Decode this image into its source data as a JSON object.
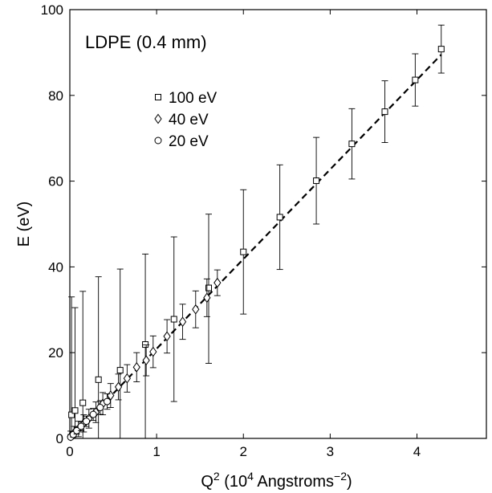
{
  "chart_data": {
    "type": "scatter",
    "title": "",
    "annotation": "LDPE (0.4 mm)",
    "xlabel": "Q^2 (10^4 Angstroms^-2)",
    "xlabel_parts": {
      "base": "Q",
      "sup1": "2",
      "mid": " (10",
      "sup2": "4",
      "unit": " Angstroms",
      "sup3": "−2",
      "end": ")"
    },
    "ylabel": "E (eV)",
    "xlim": [
      0,
      4.8
    ],
    "ylim": [
      0,
      100
    ],
    "xticks": [
      0,
      1,
      2,
      3,
      4
    ],
    "yticks": [
      0,
      20,
      40,
      60,
      80,
      100
    ],
    "grid": false,
    "legend_position": "upper-left",
    "fit_line": {
      "x": [
        0,
        4.28
      ],
      "y": [
        0,
        89.5
      ],
      "style": "dashed"
    },
    "series": [
      {
        "name": "100 eV",
        "marker": "square",
        "points": [
          {
            "x": 0.02,
            "y": 5.5,
            "err_low": 5.5,
            "err_high": 27.5
          },
          {
            "x": 0.06,
            "y": 6.5,
            "err_low": 6.5,
            "err_high": 24
          },
          {
            "x": 0.15,
            "y": 8.3,
            "err_low": 8.3,
            "err_high": 26
          },
          {
            "x": 0.33,
            "y": 13.7,
            "err_low": 13.7,
            "err_high": 24
          },
          {
            "x": 0.58,
            "y": 15.9,
            "err_low": 15.9,
            "err_high": 23.6
          },
          {
            "x": 0.87,
            "y": 21.9,
            "err_low": 21.9,
            "err_high": 21.1
          },
          {
            "x": 1.2,
            "y": 27.8,
            "err_low": 19.2,
            "err_high": 19.2
          },
          {
            "x": 1.6,
            "y": 35.1,
            "err_low": 17.6,
            "err_high": 17.2
          },
          {
            "x": 2.0,
            "y": 43.5,
            "err_low": 14.5,
            "err_high": 14.5
          },
          {
            "x": 2.42,
            "y": 51.6,
            "err_low": 12.2,
            "err_high": 12.2
          },
          {
            "x": 2.84,
            "y": 60.1,
            "err_low": 10.1,
            "err_high": 10.1
          },
          {
            "x": 3.25,
            "y": 68.7,
            "err_low": 8.2,
            "err_high": 8.2
          },
          {
            "x": 3.63,
            "y": 76.2,
            "err_low": 7.2,
            "err_high": 7.2
          },
          {
            "x": 3.98,
            "y": 83.6,
            "err_low": 6.1,
            "err_high": 6.1
          },
          {
            "x": 4.28,
            "y": 90.8,
            "err_low": 5.6,
            "err_high": 5.6
          }
        ]
      },
      {
        "name": "40 eV",
        "marker": "diamond",
        "points": [
          {
            "x": 0.01,
            "y": 0.5,
            "err_low": 0.5,
            "err_high": 1.2
          },
          {
            "x": 0.05,
            "y": 1.3,
            "err_low": 1.3,
            "err_high": 1.5
          },
          {
            "x": 0.1,
            "y": 2.2,
            "err_low": 1.8,
            "err_high": 1.8
          },
          {
            "x": 0.16,
            "y": 3.5,
            "err_low": 2.0,
            "err_high": 2.0
          },
          {
            "x": 0.22,
            "y": 4.6,
            "err_low": 2.2,
            "err_high": 2.2
          },
          {
            "x": 0.3,
            "y": 6.1,
            "err_low": 2.4,
            "err_high": 2.4
          },
          {
            "x": 0.38,
            "y": 8.1,
            "err_low": 2.6,
            "err_high": 2.6
          },
          {
            "x": 0.47,
            "y": 10.0,
            "err_low": 2.8,
            "err_high": 2.8
          },
          {
            "x": 0.56,
            "y": 12.0,
            "err_low": 3.0,
            "err_high": 3.0
          },
          {
            "x": 0.66,
            "y": 14.0,
            "err_low": 3.2,
            "err_high": 3.2
          },
          {
            "x": 0.77,
            "y": 16.6,
            "err_low": 3.4,
            "err_high": 3.4
          },
          {
            "x": 0.88,
            "y": 18.2,
            "err_low": 3.6,
            "err_high": 3.6
          },
          {
            "x": 0.96,
            "y": 20.2,
            "err_low": 3.7,
            "err_high": 3.7
          },
          {
            "x": 1.12,
            "y": 23.8,
            "err_low": 3.9,
            "err_high": 3.9
          },
          {
            "x": 1.3,
            "y": 27.2,
            "err_low": 4.1,
            "err_high": 4.1
          },
          {
            "x": 1.45,
            "y": 30.1,
            "err_low": 4.3,
            "err_high": 4.3
          },
          {
            "x": 1.58,
            "y": 32.8,
            "err_low": 4.4,
            "err_high": 4.4
          },
          {
            "x": 1.7,
            "y": 36.3,
            "err_low": 3.0,
            "err_high": 3.0
          }
        ]
      },
      {
        "name": "20 eV",
        "marker": "circle",
        "points": [
          {
            "x": 0.01,
            "y": 0.3,
            "err_low": 0.3,
            "err_high": 0.6
          },
          {
            "x": 0.04,
            "y": 0.9,
            "err_low": 0.6,
            "err_high": 0.6
          },
          {
            "x": 0.08,
            "y": 1.8,
            "err_low": 0.8,
            "err_high": 0.8
          },
          {
            "x": 0.13,
            "y": 2.8,
            "err_low": 1.0,
            "err_high": 1.0
          },
          {
            "x": 0.19,
            "y": 4.0,
            "err_low": 1.2,
            "err_high": 1.2
          },
          {
            "x": 0.27,
            "y": 5.6,
            "err_low": 1.4,
            "err_high": 1.4
          },
          {
            "x": 0.35,
            "y": 7.2,
            "err_low": 1.6,
            "err_high": 1.6
          },
          {
            "x": 0.43,
            "y": 8.6,
            "err_low": 1.8,
            "err_high": 1.8
          }
        ]
      }
    ]
  }
}
